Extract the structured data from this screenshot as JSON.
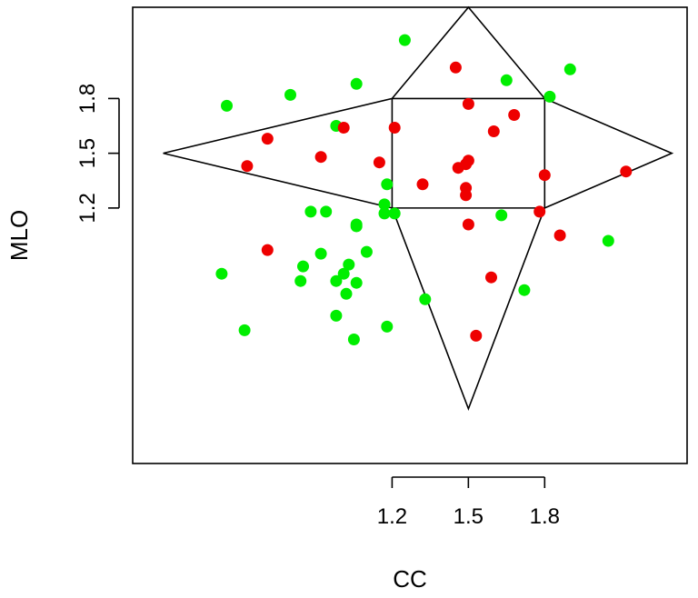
{
  "chart_data": {
    "type": "scatter",
    "xlabel": "CC",
    "ylabel": "MLO",
    "xlim": [
      0.18,
      2.36
    ],
    "ylim": [
      -0.2,
      2.3
    ],
    "x_ticks": [
      1.2,
      1.5,
      1.8
    ],
    "x_tick_labels": [
      "1.2",
      "1.5",
      "1.8"
    ],
    "y_ticks": [
      1.2,
      1.5,
      1.8
    ],
    "y_tick_labels": [
      "1.2",
      "1.5",
      "1.8"
    ],
    "grid": false,
    "legend": false,
    "colors": {
      "series_1": "#00ee00",
      "series_2": "#ee0000",
      "outline": "#000000"
    },
    "outline_shape": {
      "description": "square with triangular points on each side",
      "square": [
        [
          1.2,
          1.2
        ],
        [
          1.8,
          1.2
        ],
        [
          1.8,
          1.8
        ],
        [
          1.2,
          1.8
        ]
      ],
      "points": {
        "top": [
          1.5,
          2.3
        ],
        "right": [
          2.3,
          1.5
        ],
        "bottom": [
          1.5,
          0.1
        ],
        "left": [
          0.3,
          1.5
        ]
      }
    },
    "series": [
      {
        "color": "#00ee00",
        "points": [
          [
            0.55,
            1.76
          ],
          [
            0.8,
            1.82
          ],
          [
            0.98,
            1.65
          ],
          [
            1.06,
            1.88
          ],
          [
            1.25,
            2.12
          ],
          [
            1.65,
            1.9
          ],
          [
            1.82,
            1.81
          ],
          [
            1.9,
            1.96
          ],
          [
            0.88,
            1.18
          ],
          [
            0.94,
            1.18
          ],
          [
            1.18,
            1.33
          ],
          [
            1.17,
            1.22
          ],
          [
            1.17,
            1.17
          ],
          [
            1.21,
            1.17
          ],
          [
            1.06,
            1.11
          ],
          [
            1.06,
            1.1
          ],
          [
            1.63,
            1.16
          ],
          [
            2.05,
            1.02
          ],
          [
            0.92,
            0.95
          ],
          [
            0.85,
            0.88
          ],
          [
            1.03,
            0.89
          ],
          [
            1.1,
            0.96
          ],
          [
            0.53,
            0.84
          ],
          [
            0.84,
            0.8
          ],
          [
            0.98,
            0.8
          ],
          [
            1.01,
            0.84
          ],
          [
            1.06,
            0.79
          ],
          [
            1.02,
            0.73
          ],
          [
            1.33,
            0.7
          ],
          [
            1.72,
            0.75
          ],
          [
            0.62,
            0.53
          ],
          [
            0.98,
            0.61
          ],
          [
            1.05,
            0.48
          ],
          [
            1.18,
            0.55
          ]
        ]
      },
      {
        "color": "#ee0000",
        "points": [
          [
            1.45,
            1.97
          ],
          [
            1.5,
            1.77
          ],
          [
            1.68,
            1.71
          ],
          [
            1.6,
            1.62
          ],
          [
            1.21,
            1.64
          ],
          [
            1.01,
            1.64
          ],
          [
            0.71,
            1.58
          ],
          [
            0.63,
            1.43
          ],
          [
            0.92,
            1.48
          ],
          [
            1.15,
            1.45
          ],
          [
            1.32,
            1.33
          ],
          [
            1.46,
            1.42
          ],
          [
            1.49,
            1.44
          ],
          [
            1.5,
            1.46
          ],
          [
            1.49,
            1.31
          ],
          [
            1.49,
            1.27
          ],
          [
            1.8,
            1.38
          ],
          [
            2.12,
            1.4
          ],
          [
            1.78,
            1.18
          ],
          [
            1.5,
            1.11
          ],
          [
            1.86,
            1.05
          ],
          [
            0.71,
            0.97
          ],
          [
            1.59,
            0.82
          ],
          [
            1.53,
            0.5
          ]
        ]
      }
    ]
  }
}
